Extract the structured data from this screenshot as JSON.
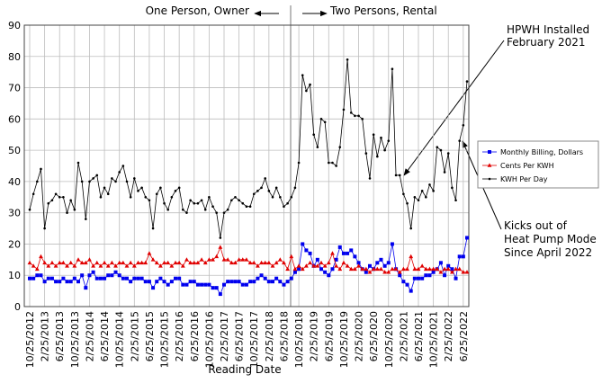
{
  "chart_data": {
    "type": "line",
    "x_label": "Reading Date",
    "annotations": [
      "One Person, Owner",
      "Two Persons, Rental",
      "HPWH Installed",
      "February 2021",
      "Kicks out of",
      "Heat Pump Mode",
      "Since April 2022"
    ],
    "categories": [
      "10/25/2012",
      null,
      null,
      null,
      "2/25/2013",
      null,
      null,
      null,
      "6/25/2013",
      null,
      null,
      null,
      "10/25/2013",
      null,
      null,
      null,
      "2/25/2014",
      null,
      null,
      null,
      "6/25/2014",
      null,
      null,
      null,
      "10/25/2014",
      null,
      null,
      null,
      "2/25/2015",
      null,
      null,
      null,
      "6/25/2015",
      null,
      null,
      null,
      "10/25/2015",
      null,
      null,
      null,
      "2/25/2016",
      null,
      null,
      null,
      "6/25/2016",
      null,
      null,
      null,
      "10/25/2016",
      null,
      null,
      null,
      "2/25/2017",
      null,
      null,
      null,
      "6/25/2017",
      null,
      null,
      null,
      "10/25/2017",
      null,
      null,
      null,
      "2/25/2018",
      null,
      null,
      null,
      "6/25/2018",
      null,
      null,
      null,
      "10/25/2018",
      null,
      null,
      null,
      "2/25/2019",
      null,
      null,
      null,
      "6/25/2019",
      null,
      null,
      null,
      "10/25/2019",
      null,
      null,
      null,
      "2/25/2020",
      null,
      null,
      null,
      "6/25/2020",
      null,
      null,
      null,
      "10/25/2020",
      null,
      null,
      null,
      "2/25/2021",
      null,
      null,
      null,
      "6/25/2021",
      null,
      null,
      null,
      "10/25/2021",
      null,
      null,
      null,
      "2/25/2022",
      null,
      null,
      null,
      "6/25/2022",
      null
    ],
    "series": [
      {
        "name": "Monthly Billing, Dollars",
        "color": "#0000ee",
        "marker": "square",
        "values": [
          9,
          9,
          10,
          10,
          8,
          9,
          9,
          8,
          8,
          9,
          8,
          8,
          9,
          8,
          10,
          6,
          10,
          11,
          9,
          9,
          9,
          10,
          10,
          11,
          10,
          9,
          9,
          8,
          9,
          9,
          9,
          8,
          8,
          6,
          8,
          9,
          8,
          7,
          8,
          9,
          9,
          7,
          7,
          8,
          8,
          7,
          7,
          7,
          7,
          6,
          6,
          4,
          7,
          8,
          8,
          8,
          8,
          7,
          7,
          8,
          8,
          9,
          10,
          9,
          8,
          8,
          9,
          8,
          7,
          8,
          9,
          11,
          12,
          20,
          18,
          17,
          13,
          15,
          12,
          11,
          10,
          12,
          15,
          19,
          17,
          17,
          18,
          16,
          14,
          12,
          11,
          13,
          12,
          14,
          15,
          13,
          14,
          20,
          12,
          10,
          8,
          7,
          5,
          9,
          9,
          9,
          10,
          10,
          11,
          12,
          14,
          10,
          13,
          12,
          9,
          16,
          16,
          22
        ]
      },
      {
        "name": "Cents Per KWH",
        "color": "#e00000",
        "marker": "triangle",
        "values": [
          14,
          13,
          12,
          16,
          14,
          13,
          14,
          13,
          14,
          14,
          13,
          14,
          13,
          15,
          14,
          14,
          15,
          13,
          14,
          13,
          14,
          13,
          14,
          13,
          14,
          14,
          13,
          14,
          13,
          14,
          14,
          14,
          17,
          15,
          14,
          13,
          14,
          14,
          13,
          14,
          14,
          13,
          15,
          14,
          14,
          14,
          15,
          14,
          15,
          15,
          16,
          19,
          15,
          15,
          14,
          14,
          15,
          15,
          15,
          14,
          14,
          13,
          14,
          14,
          14,
          13,
          14,
          15,
          14,
          12,
          16,
          12,
          13,
          12,
          13,
          14,
          13,
          13,
          14,
          13,
          14,
          17,
          13,
          12,
          14,
          13,
          12,
          12,
          13,
          12,
          12,
          11,
          12,
          12,
          12,
          11,
          11,
          12,
          12,
          11,
          12,
          12,
          16,
          12,
          12,
          13,
          12,
          12,
          12,
          12,
          11,
          12,
          12,
          11,
          12,
          12,
          11,
          11
        ]
      },
      {
        "name": "KWH Per Day",
        "color": "#000000",
        "marker": "dot",
        "values": [
          31,
          36,
          40,
          44,
          25,
          33,
          34,
          36,
          35,
          35,
          30,
          34,
          31,
          46,
          40,
          28,
          40,
          41,
          42,
          35,
          38,
          36,
          41,
          40,
          43,
          45,
          40,
          35,
          41,
          37,
          38,
          35,
          34,
          25,
          36,
          38,
          33,
          31,
          35,
          37,
          38,
          31,
          30,
          34,
          33,
          33,
          34,
          31,
          35,
          32,
          30,
          22,
          30,
          31,
          34,
          35,
          34,
          33,
          32,
          32,
          36,
          37,
          38,
          41,
          37,
          35,
          38,
          35,
          32,
          33,
          35,
          38,
          46,
          74,
          69,
          71,
          55,
          51,
          60,
          59,
          46,
          46,
          45,
          51,
          63,
          79,
          62,
          61,
          61,
          60,
          49,
          41,
          55,
          48,
          54,
          50,
          53,
          76,
          42,
          42,
          36,
          33,
          25,
          35,
          34,
          37,
          35,
          39,
          37,
          51,
          50,
          43,
          49,
          38,
          34,
          53,
          58,
          72
        ]
      }
    ],
    "ylim": [
      0,
      90
    ],
    "yticks": [
      0,
      10,
      20,
      30,
      40,
      50,
      60,
      70,
      80,
      90
    ],
    "grid": true,
    "legend": "right"
  }
}
